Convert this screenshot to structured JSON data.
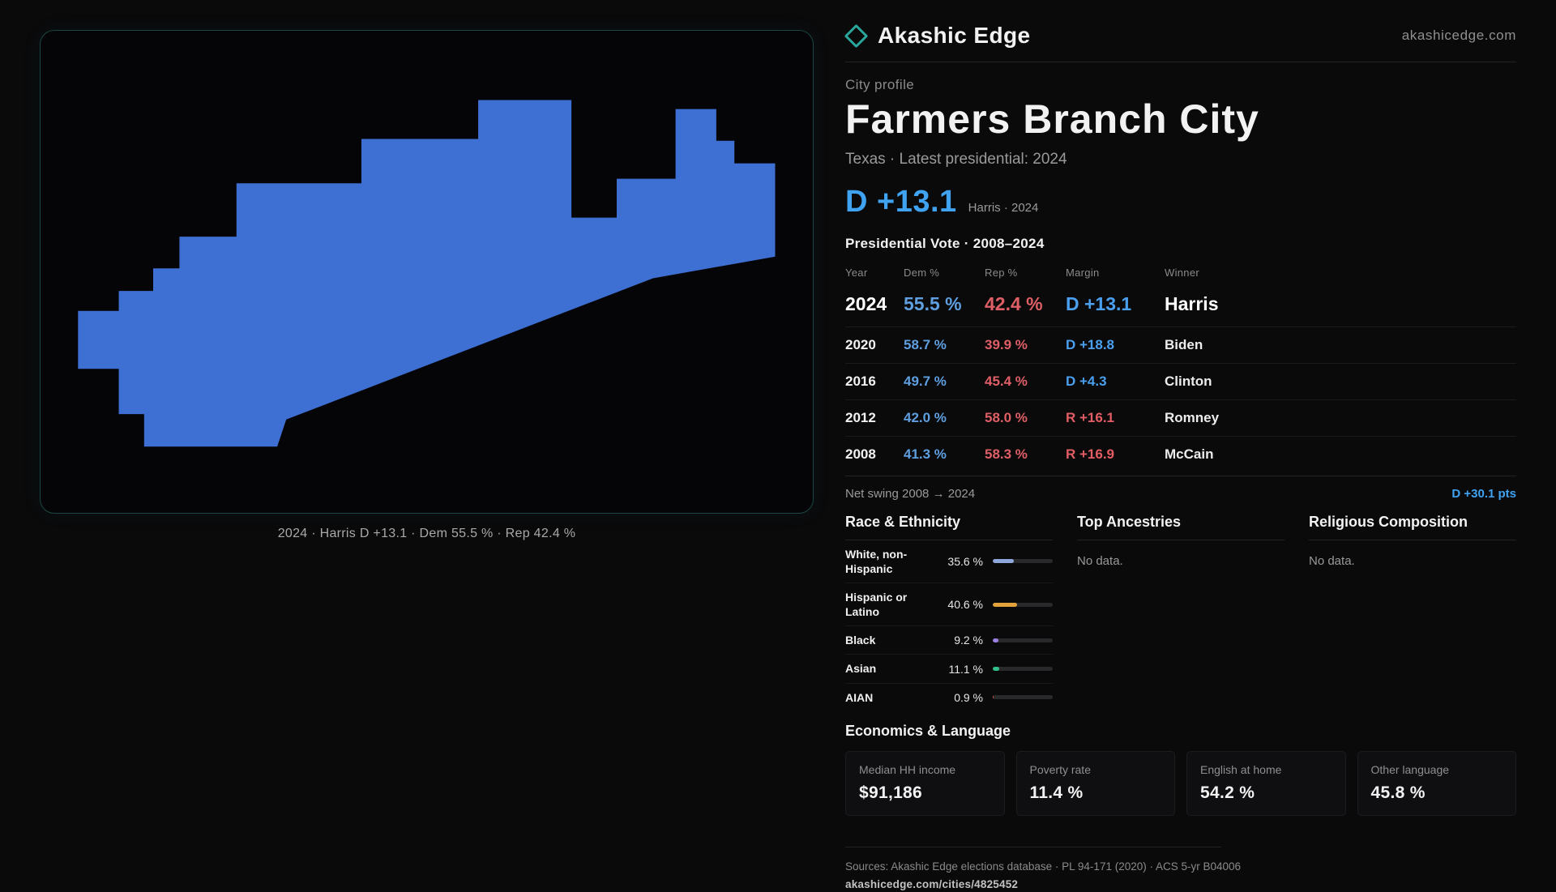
{
  "brand": {
    "name": "Akashic Edge",
    "domain": "akashicedge.com",
    "accent_teal": "#2aa79b"
  },
  "map": {
    "caption": "2024 · Harris D +13.1 · Dem 55.5 % · Rep 42.4 %",
    "fill": "#3e6fd3"
  },
  "profile": {
    "kicker": "City profile",
    "title": "Farmers Branch City",
    "subtitle": "Texas · Latest presidential: 2024",
    "headline_margin": "D +13.1",
    "headline_note": "Harris · 2024",
    "dem_color": "#4aa0ee",
    "rep_color": "#e25d64"
  },
  "elections": {
    "heading": "Presidential Vote · 2008–2024",
    "columns": [
      "Year",
      "Dem %",
      "Rep %",
      "Margin",
      "Winner"
    ],
    "rows": [
      {
        "year": "2024",
        "dem": "55.5 %",
        "rep": "42.4 %",
        "margin": "D +13.1",
        "winner": "Harris",
        "party": "D"
      },
      {
        "year": "2020",
        "dem": "58.7 %",
        "rep": "39.9 %",
        "margin": "D +18.8",
        "winner": "Biden",
        "party": "D"
      },
      {
        "year": "2016",
        "dem": "49.7 %",
        "rep": "45.4 %",
        "margin": "D +4.3",
        "winner": "Clinton",
        "party": "D"
      },
      {
        "year": "2012",
        "dem": "42.0 %",
        "rep": "58.0 %",
        "margin": "R +16.1",
        "winner": "Romney",
        "party": "R"
      },
      {
        "year": "2008",
        "dem": "41.3 %",
        "rep": "58.3 %",
        "margin": "R +16.9",
        "winner": "McCain",
        "party": "R"
      }
    ],
    "net_swing_label": "Net swing 2008 → 2024",
    "net_swing_value": "D +30.1 pts"
  },
  "demographics": {
    "race_heading": "Race & Ethnicity",
    "race_rows": [
      {
        "label": "White, non-Hispanic",
        "value": "35.6 %",
        "pct": 35.6,
        "color": "#8fa8dc"
      },
      {
        "label": "Hispanic or Latino",
        "value": "40.6 %",
        "pct": 40.6,
        "color": "#e3a23c"
      },
      {
        "label": "Black",
        "value": "9.2 %",
        "pct": 9.2,
        "color": "#9b7fe0"
      },
      {
        "label": "Asian",
        "value": "11.1 %",
        "pct": 11.1,
        "color": "#2fc08c"
      },
      {
        "label": "AIAN",
        "value": "0.9 %",
        "pct": 0.9,
        "color": "#c65548"
      }
    ],
    "ancestries_heading": "Top Ancestries",
    "ancestries_empty": "No data.",
    "religion_heading": "Religious Composition",
    "religion_empty": "No data."
  },
  "economics": {
    "heading": "Economics & Language",
    "stats": [
      {
        "label": "Median HH income",
        "value": "$91,186"
      },
      {
        "label": "Poverty rate",
        "value": "11.4 %"
      },
      {
        "label": "English at home",
        "value": "54.2 %"
      },
      {
        "label": "Other language",
        "value": "45.8 %"
      }
    ]
  },
  "footer": {
    "sources": "Sources: Akashic Edge elections database · PL 94-171 (2020) · ACS 5-yr B04006",
    "permalink": "akashicedge.com/cities/4825452"
  }
}
